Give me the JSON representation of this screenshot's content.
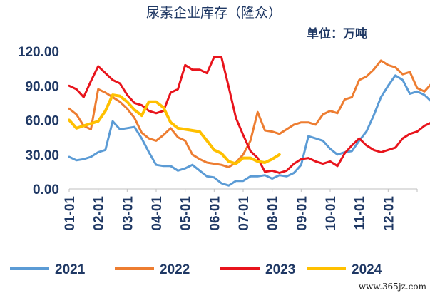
{
  "chart_data": {
    "type": "line",
    "title": "尿素企业库存（隆众）",
    "unit_label": "单位：万吨",
    "ylim": [
      0,
      120
    ],
    "yticks": [
      "0.00",
      "30.00",
      "60.00",
      "90.00",
      "120.00"
    ],
    "categories": [
      "01-01",
      "02-01",
      "03-01",
      "04-01",
      "05-01",
      "06-01",
      "07-01",
      "08-01",
      "09-01",
      "10-01",
      "11-01",
      "12-01"
    ],
    "legend_position": "bottom",
    "series": [
      {
        "name": "2021",
        "color": "#5b9bd5",
        "values": [
          [
            0.0,
            28
          ],
          [
            0.25,
            25
          ],
          [
            0.5,
            26
          ],
          [
            0.75,
            28
          ],
          [
            1.0,
            32
          ],
          [
            1.25,
            34
          ],
          [
            1.5,
            59
          ],
          [
            1.75,
            52
          ],
          [
            2.0,
            53
          ],
          [
            2.25,
            54
          ],
          [
            2.5,
            44
          ],
          [
            2.75,
            32
          ],
          [
            3.0,
            21
          ],
          [
            3.25,
            20
          ],
          [
            3.5,
            20
          ],
          [
            3.75,
            16
          ],
          [
            4.0,
            18
          ],
          [
            4.25,
            21
          ],
          [
            4.5,
            16
          ],
          [
            4.75,
            11
          ],
          [
            5.0,
            10
          ],
          [
            5.25,
            5
          ],
          [
            5.5,
            3
          ],
          [
            5.75,
            7
          ],
          [
            6.0,
            7
          ],
          [
            6.25,
            11
          ],
          [
            6.5,
            11
          ],
          [
            6.75,
            12
          ],
          [
            7.0,
            9
          ],
          [
            7.25,
            12
          ],
          [
            7.5,
            11
          ],
          [
            7.75,
            14
          ],
          [
            8.0,
            21
          ],
          [
            8.25,
            46
          ],
          [
            8.5,
            44
          ],
          [
            8.75,
            42
          ],
          [
            9.0,
            35
          ],
          [
            9.25,
            30
          ],
          [
            9.5,
            32
          ],
          [
            9.75,
            33
          ],
          [
            10.0,
            42
          ],
          [
            10.25,
            50
          ],
          [
            10.5,
            64
          ],
          [
            10.75,
            80
          ],
          [
            11.0,
            90
          ],
          [
            11.25,
            99
          ],
          [
            11.5,
            95
          ],
          [
            11.75,
            83
          ],
          [
            12.0,
            85
          ],
          [
            12.25,
            82
          ],
          [
            12.5,
            76
          ],
          [
            12.75,
            72
          ]
        ]
      },
      {
        "name": "2022",
        "color": "#ed7d31",
        "values": [
          [
            0.0,
            70
          ],
          [
            0.25,
            65
          ],
          [
            0.5,
            55
          ],
          [
            0.75,
            52
          ],
          [
            1.0,
            87
          ],
          [
            1.25,
            84
          ],
          [
            1.5,
            80
          ],
          [
            1.75,
            76
          ],
          [
            2.0,
            70
          ],
          [
            2.25,
            62
          ],
          [
            2.5,
            49
          ],
          [
            2.75,
            44
          ],
          [
            3.0,
            42
          ],
          [
            3.25,
            47
          ],
          [
            3.5,
            53
          ],
          [
            3.75,
            45
          ],
          [
            4.0,
            42
          ],
          [
            4.25,
            30
          ],
          [
            4.5,
            26
          ],
          [
            4.75,
            23
          ],
          [
            5.0,
            22
          ],
          [
            5.25,
            21
          ],
          [
            5.5,
            19
          ],
          [
            5.75,
            23
          ],
          [
            6.0,
            30
          ],
          [
            6.25,
            42
          ],
          [
            6.5,
            67
          ],
          [
            6.75,
            51
          ],
          [
            7.0,
            50
          ],
          [
            7.25,
            48
          ],
          [
            7.5,
            52
          ],
          [
            7.75,
            56
          ],
          [
            8.0,
            58
          ],
          [
            8.25,
            58
          ],
          [
            8.5,
            56
          ],
          [
            8.75,
            65
          ],
          [
            9.0,
            68
          ],
          [
            9.25,
            66
          ],
          [
            9.5,
            78
          ],
          [
            9.75,
            80
          ],
          [
            10.0,
            95
          ],
          [
            10.25,
            98
          ],
          [
            10.5,
            104
          ],
          [
            10.75,
            112
          ],
          [
            11.0,
            108
          ],
          [
            11.25,
            106
          ],
          [
            11.5,
            100
          ],
          [
            11.75,
            102
          ],
          [
            12.0,
            88
          ],
          [
            12.25,
            85
          ],
          [
            12.5,
            92
          ]
        ]
      },
      {
        "name": "2023",
        "color": "#e8141c",
        "values": [
          [
            0.0,
            90
          ],
          [
            0.25,
            87
          ],
          [
            0.5,
            80
          ],
          [
            0.75,
            94
          ],
          [
            1.0,
            107
          ],
          [
            1.25,
            101
          ],
          [
            1.5,
            95
          ],
          [
            1.75,
            92
          ],
          [
            2.0,
            82
          ],
          [
            2.25,
            75
          ],
          [
            2.5,
            73
          ],
          [
            2.75,
            68
          ],
          [
            3.0,
            66
          ],
          [
            3.25,
            68
          ],
          [
            3.5,
            84
          ],
          [
            3.75,
            87
          ],
          [
            4.0,
            108
          ],
          [
            4.25,
            104
          ],
          [
            4.5,
            104
          ],
          [
            4.75,
            101
          ],
          [
            5.0,
            115
          ],
          [
            5.25,
            115
          ],
          [
            5.5,
            89
          ],
          [
            5.75,
            62
          ],
          [
            6.0,
            47
          ],
          [
            6.25,
            33
          ],
          [
            6.5,
            27
          ],
          [
            6.75,
            15
          ],
          [
            7.0,
            16
          ],
          [
            7.25,
            14
          ],
          [
            7.5,
            16
          ],
          [
            7.75,
            22
          ],
          [
            8.0,
            26
          ],
          [
            8.25,
            27
          ],
          [
            8.5,
            24
          ],
          [
            8.75,
            22
          ],
          [
            9.0,
            24
          ],
          [
            9.25,
            20
          ],
          [
            9.5,
            31
          ],
          [
            9.75,
            38
          ],
          [
            10.0,
            44
          ],
          [
            10.25,
            38
          ],
          [
            10.5,
            34
          ],
          [
            10.75,
            32
          ],
          [
            11.0,
            34
          ],
          [
            11.25,
            36
          ],
          [
            11.5,
            44
          ],
          [
            11.75,
            48
          ],
          [
            12.0,
            50
          ],
          [
            12.25,
            55
          ],
          [
            12.5,
            58
          ],
          [
            12.75,
            64
          ]
        ]
      },
      {
        "name": "2024",
        "color": "#ffc000",
        "values": [
          [
            0.0,
            60
          ],
          [
            0.25,
            53
          ],
          [
            0.5,
            55
          ],
          [
            0.75,
            57
          ],
          [
            1.0,
            59
          ],
          [
            1.25,
            68
          ],
          [
            1.5,
            82
          ],
          [
            1.75,
            81
          ],
          [
            2.0,
            76
          ],
          [
            2.25,
            69
          ],
          [
            2.5,
            64
          ],
          [
            2.75,
            76
          ],
          [
            3.0,
            76
          ],
          [
            3.25,
            71
          ],
          [
            3.5,
            58
          ],
          [
            3.75,
            53
          ],
          [
            4.0,
            52
          ],
          [
            4.25,
            51
          ],
          [
            4.5,
            50
          ],
          [
            4.75,
            42
          ],
          [
            5.0,
            34
          ],
          [
            5.25,
            31
          ],
          [
            5.5,
            24
          ],
          [
            5.75,
            22
          ],
          [
            6.0,
            27
          ],
          [
            6.25,
            27
          ],
          [
            6.5,
            24
          ],
          [
            6.75,
            23
          ],
          [
            7.0,
            26
          ],
          [
            7.25,
            30
          ]
        ]
      }
    ]
  },
  "watermark": "www.365jz.com"
}
